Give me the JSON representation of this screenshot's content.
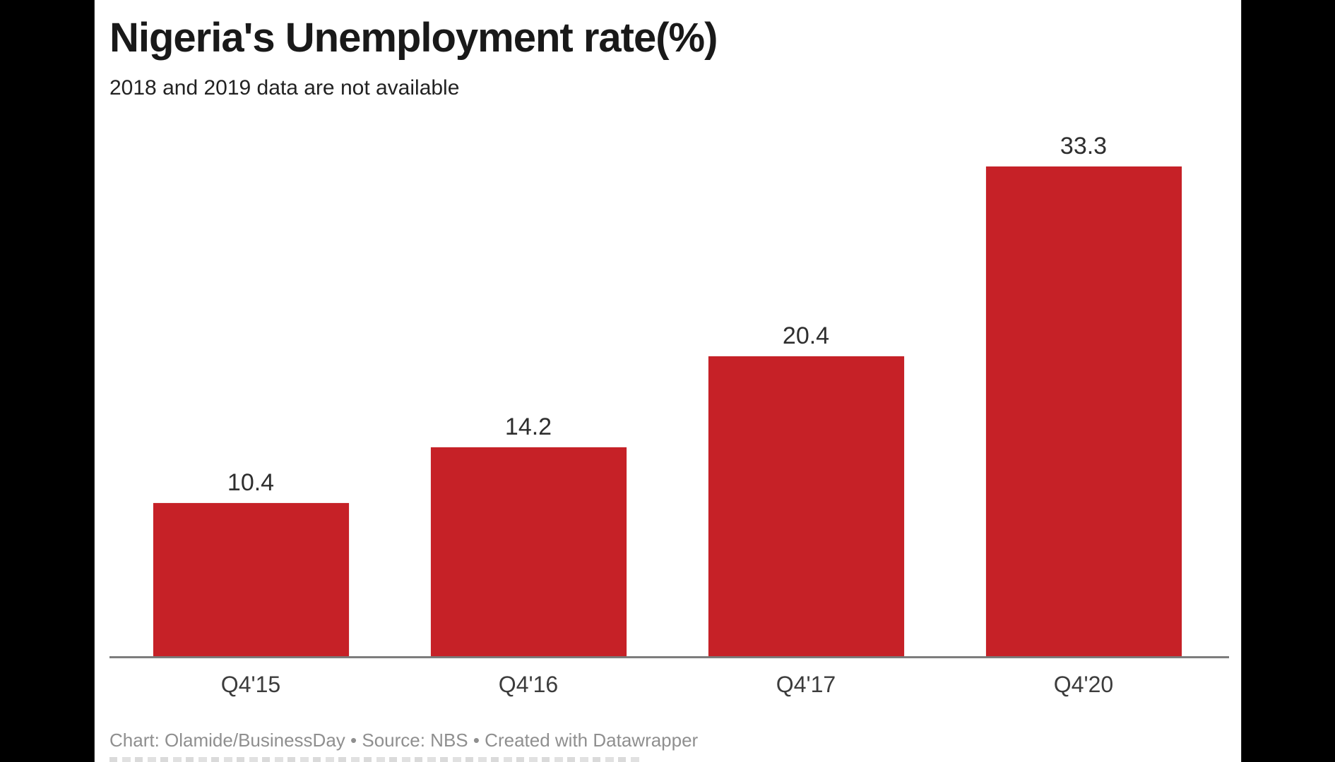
{
  "page": {
    "background_color": "#000000",
    "canvas_color": "#ffffff"
  },
  "header": {
    "title": "Nigeria's Unemployment rate(%)",
    "subtitle": "2018 and 2019 data are not available"
  },
  "footer": {
    "attribution": "Chart: Olamide/BusinessDay • Source: NBS • Created with Datawrapper"
  },
  "colors": {
    "bar": "#c62127",
    "axis_line": "#7d7d7d",
    "title_text": "#191919",
    "subtitle_text": "#222222",
    "value_label_text": "#2e2e2e",
    "tick_label_text": "#3c3c3c",
    "footer_text": "#8f8f8f"
  },
  "chart_data": {
    "type": "bar",
    "title": "Nigeria's Unemployment rate(%)",
    "subtitle": "2018 and 2019 data are not available",
    "categories": [
      "Q4'15",
      "Q4'16",
      "Q4'17",
      "Q4'20"
    ],
    "values": [
      10.4,
      14.2,
      20.4,
      33.3
    ],
    "value_labels": [
      "10.4",
      "14.2",
      "20.4",
      "33.3"
    ],
    "bar_color": "#c62127",
    "xlabel": "",
    "ylabel": "",
    "ylim": [
      0,
      35
    ],
    "grid": false,
    "legend": false,
    "y_axis_shown": false,
    "x_axis_line_shown": true,
    "value_labels_position": "above-bars",
    "note": "2018 and 2019 data are not available",
    "attribution": "Chart: Olamide/BusinessDay • Source: NBS • Created with Datawrapper"
  }
}
